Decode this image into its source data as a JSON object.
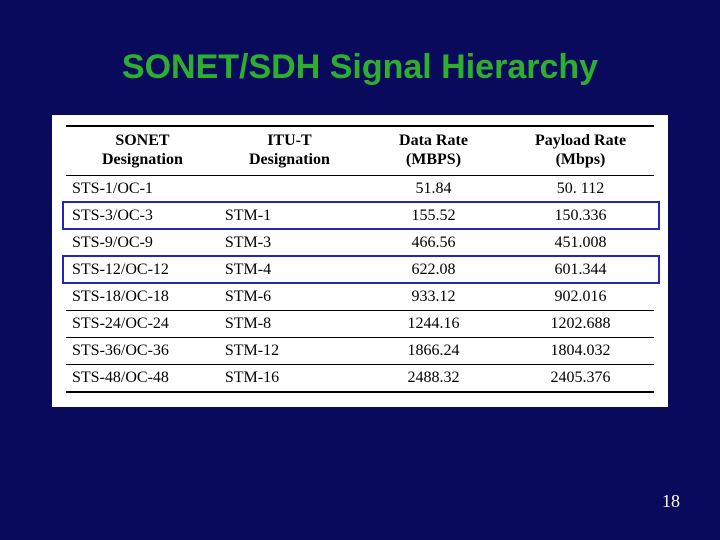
{
  "slide": {
    "title": "SONET/SDH Signal Hierarchy",
    "page_number": "18",
    "background_color": "#0a0a5c",
    "title_color": "#2eae2e",
    "title_fontsize": 34,
    "highlight_color": "#2424c0"
  },
  "table": {
    "type": "table",
    "background_color": "#ffffff",
    "border_color": "#000000",
    "header_fontsize": 16,
    "cell_fontsize": 16,
    "font_family": "Times New Roman",
    "columns": [
      {
        "line1": "SONET",
        "line2": "Designation",
        "align": "left"
      },
      {
        "line1": "ITU-T",
        "line2": "Designation",
        "align": "left"
      },
      {
        "line1": "Data Rate",
        "line2": "(MBPS)",
        "align": "center"
      },
      {
        "line1": "Payload Rate",
        "line2": "(Mbps)",
        "align": "center"
      }
    ],
    "rows": [
      {
        "cells": [
          "STS-1/OC-1",
          "",
          "51.84",
          "50. 112"
        ],
        "highlighted": false
      },
      {
        "cells": [
          "STS-3/OC-3",
          "STM-1",
          "155.52",
          "150.336"
        ],
        "highlighted": true
      },
      {
        "cells": [
          "STS-9/OC-9",
          "STM-3",
          "466.56",
          "451.008"
        ],
        "highlighted": false
      },
      {
        "cells": [
          "STS-12/OC-12",
          "STM-4",
          "622.08",
          "601.344"
        ],
        "highlighted": true
      },
      {
        "cells": [
          "STS-18/OC-18",
          "STM-6",
          "933.12",
          "902.016"
        ],
        "highlighted": false
      },
      {
        "cells": [
          "STS-24/OC-24",
          "STM-8",
          "1244.16",
          "1202.688"
        ],
        "highlighted": false
      },
      {
        "cells": [
          "STS-36/OC-36",
          "STM-12",
          "1866.24",
          "1804.032"
        ],
        "highlighted": false
      },
      {
        "cells": [
          "STS-48/OC-48",
          "STM-16",
          "2488.32",
          "2405.376"
        ],
        "highlighted": false
      }
    ]
  }
}
